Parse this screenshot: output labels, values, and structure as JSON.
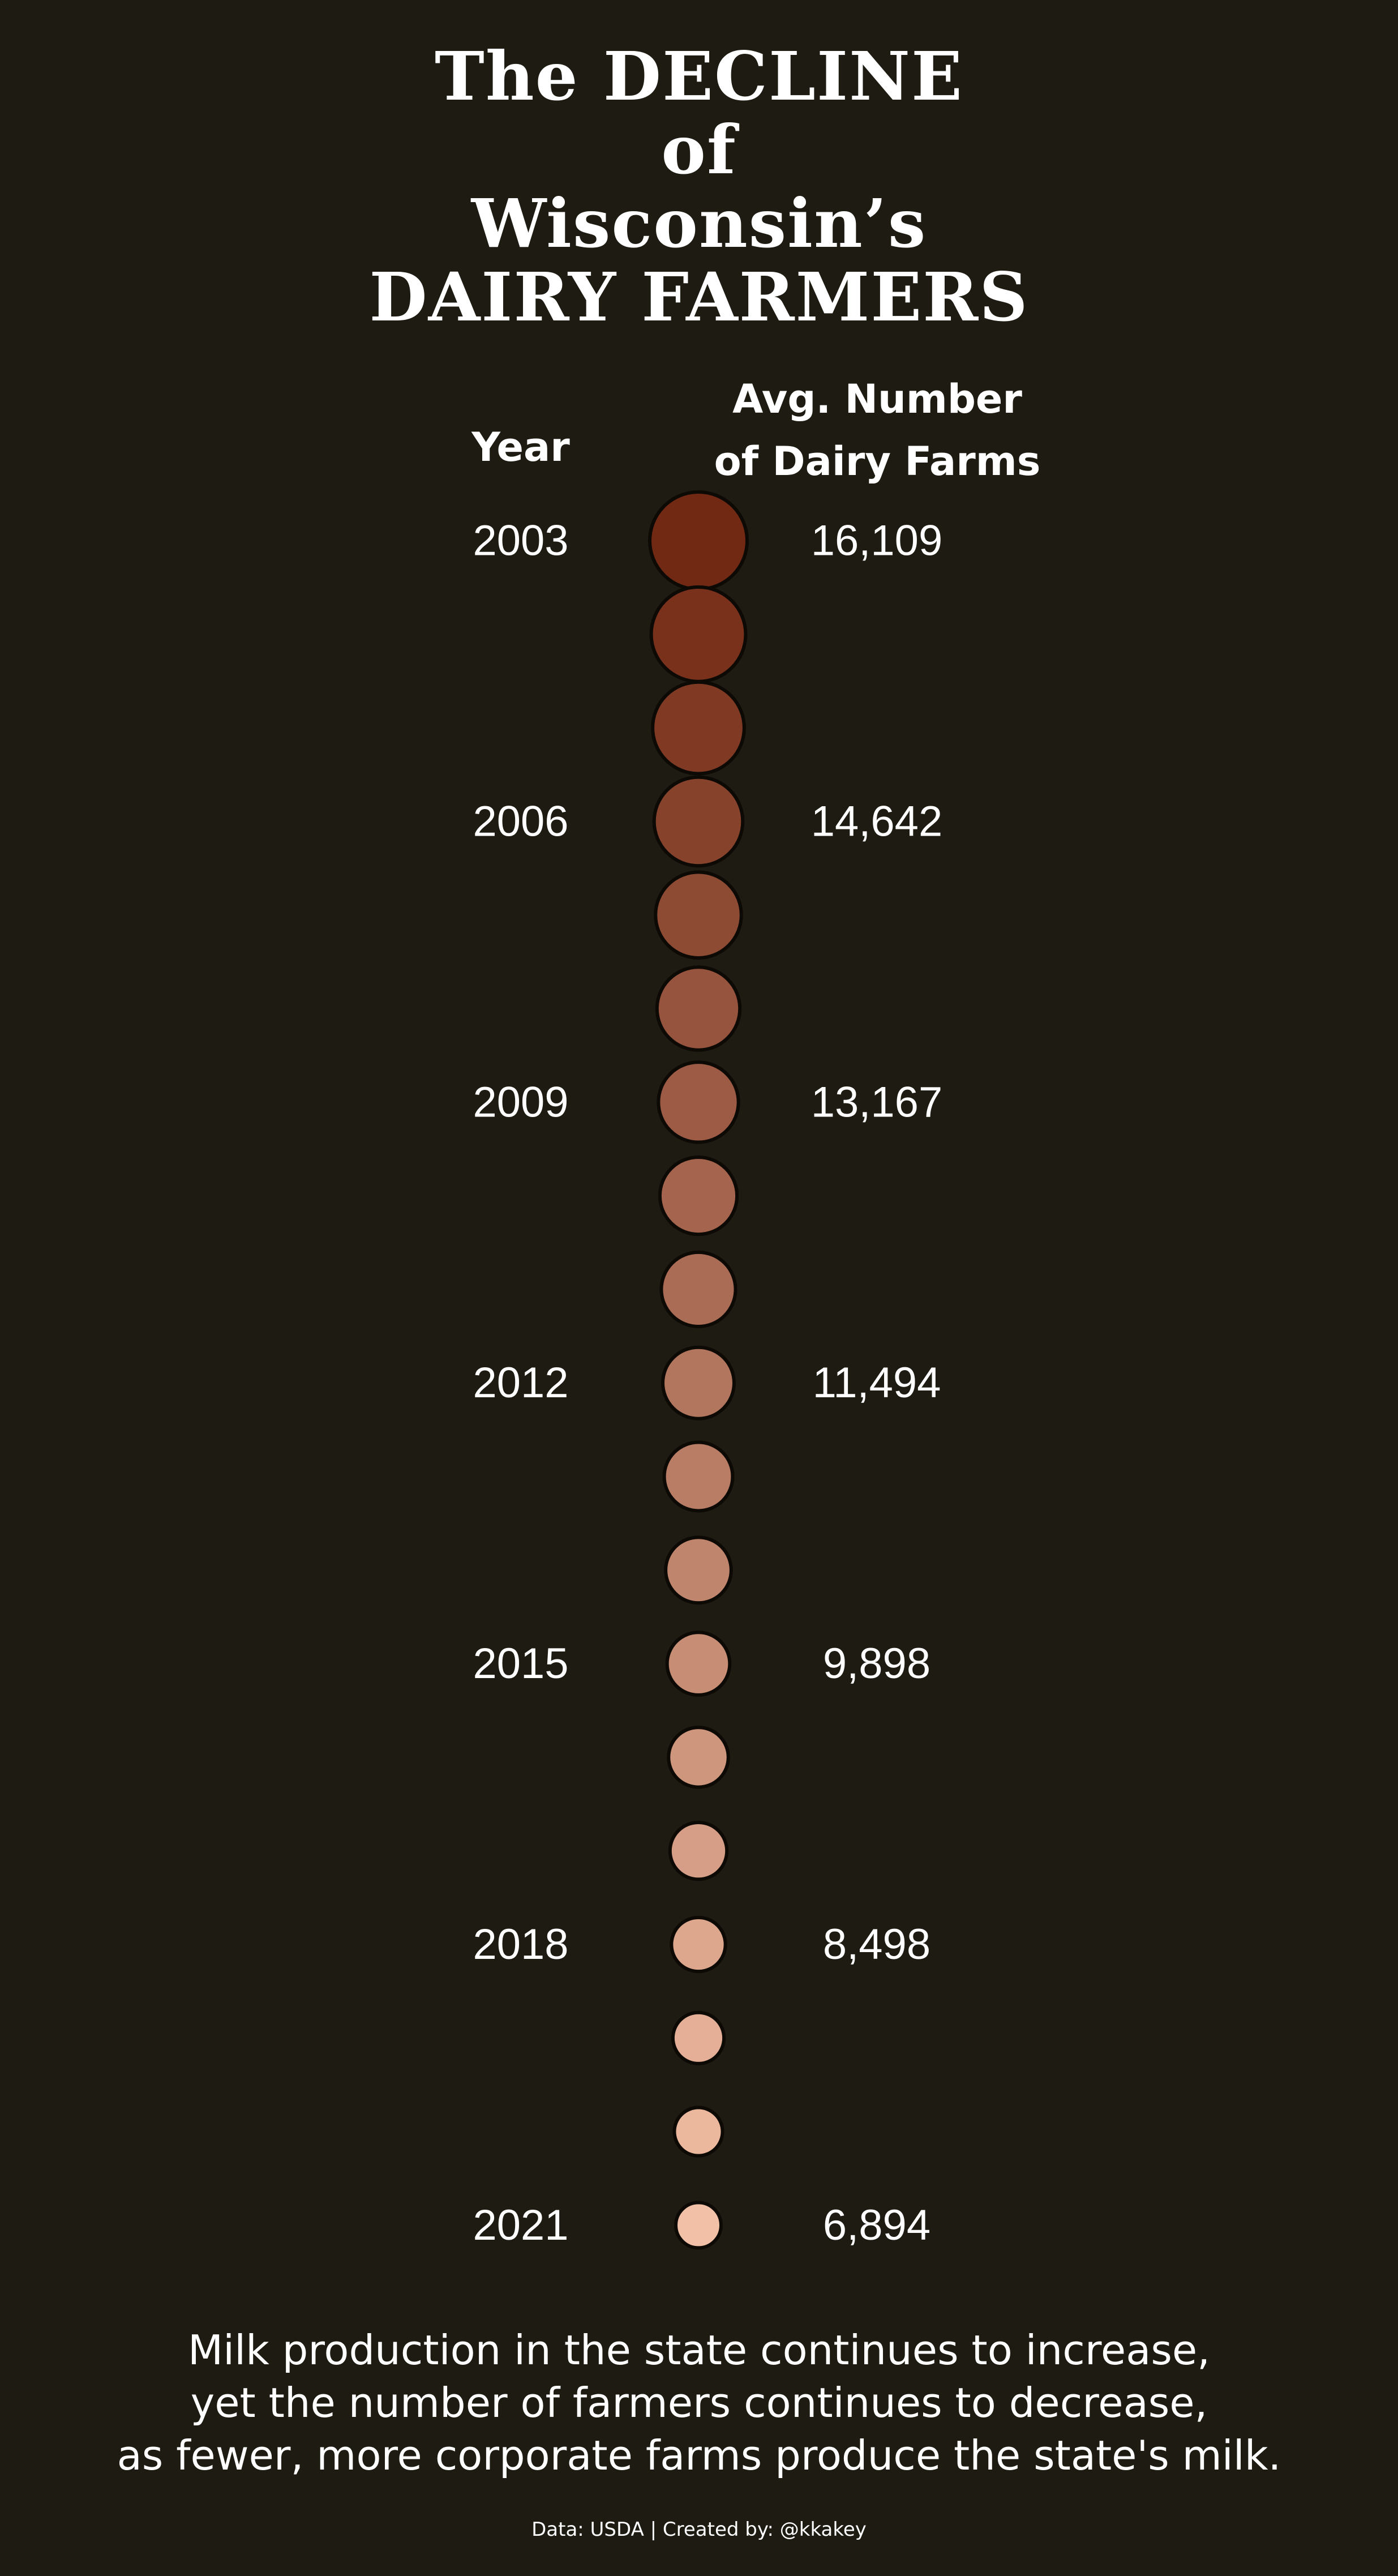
{
  "title": {
    "line1": "The DECLINE",
    "line2": "of",
    "line3": "Wisconsin’s",
    "line4": "DAIRY FARMERS"
  },
  "headers": {
    "year": "Year",
    "farms_line1": "Avg. Number",
    "farms_line2": "of Dairy Farms"
  },
  "caption": {
    "line1": "Milk production in the state continues to increase,",
    "line2": "yet the number of farmers continues to decrease,",
    "line3": "as fewer, more corporate farms produce the state's milk."
  },
  "credit": "Data: USDA | Created by: @kkakey",
  "colors": {
    "background": "#1d1b12",
    "start": "#722914",
    "end": "#f2c0a6",
    "outline": "#0d0905"
  },
  "chart_data": {
    "type": "bubble",
    "x_label": "Year",
    "y_label": "Avg. Number of Dairy Farms",
    "years": [
      2003,
      2004,
      2005,
      2006,
      2007,
      2008,
      2009,
      2010,
      2011,
      2012,
      2013,
      2014,
      2015,
      2016,
      2017,
      2018,
      2019,
      2020,
      2021
    ],
    "values": [
      16109,
      null,
      null,
      14642,
      null,
      null,
      13167,
      null,
      null,
      11494,
      null,
      null,
      9898,
      null,
      null,
      8498,
      null,
      null,
      6894
    ],
    "labeled": [
      {
        "year": "2003",
        "value": "16,109"
      },
      {
        "year": "2006",
        "value": "14,642"
      },
      {
        "year": "2009",
        "value": "13,167"
      },
      {
        "year": "2012",
        "value": "11,494"
      },
      {
        "year": "2015",
        "value": "9,898"
      },
      {
        "year": "2018",
        "value": "8,498"
      },
      {
        "year": "2021",
        "value": "6,894"
      }
    ]
  }
}
